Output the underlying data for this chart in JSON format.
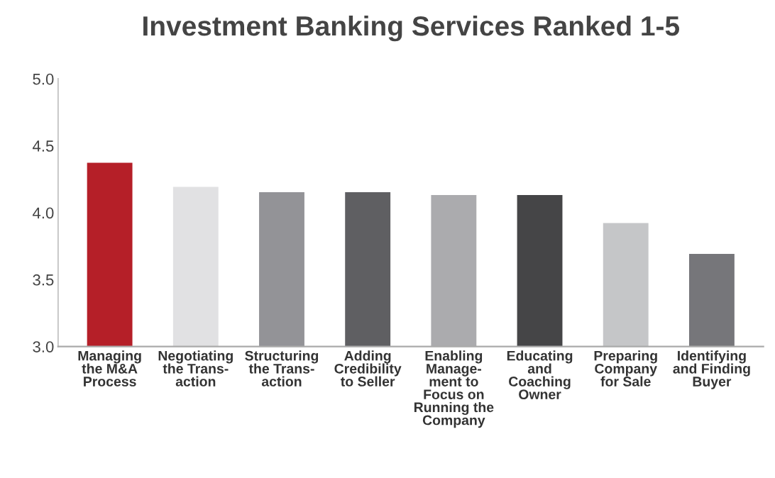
{
  "chart_data": {
    "type": "bar",
    "title": "Investment Banking Services Ranked 1-5",
    "categories": [
      "Managing\nthe M&A\nProcess",
      "Negotiating\nthe Trans-\naction",
      "Structuring\nthe Trans-\naction",
      "Adding\nCredibility\nto Seller",
      "Enabling\nManage-\nment to\nFocus on\nRunning the\nCompany",
      "Educating\nand\nCoaching\nOwner",
      "Preparing\nCompany\nfor Sale",
      "Identifying\nand Finding\nBuyer"
    ],
    "values": [
      4.38,
      4.2,
      4.16,
      4.16,
      4.14,
      4.14,
      3.93,
      3.7
    ],
    "colors": [
      "#b51f28",
      "#e1e1e3",
      "#939397",
      "#5f5f62",
      "#ababae",
      "#454547",
      "#c5c6c8",
      "#76767a"
    ],
    "ylim": [
      3.0,
      5.0
    ],
    "yticks": [
      {
        "value": 3.0,
        "label": "3.0"
      },
      {
        "value": 3.5,
        "label": "3.5"
      },
      {
        "value": 4.0,
        "label": "4.0"
      },
      {
        "value": 4.5,
        "label": "4.5"
      },
      {
        "value": 5.0,
        "label": "5.0"
      }
    ],
    "grid": false
  }
}
